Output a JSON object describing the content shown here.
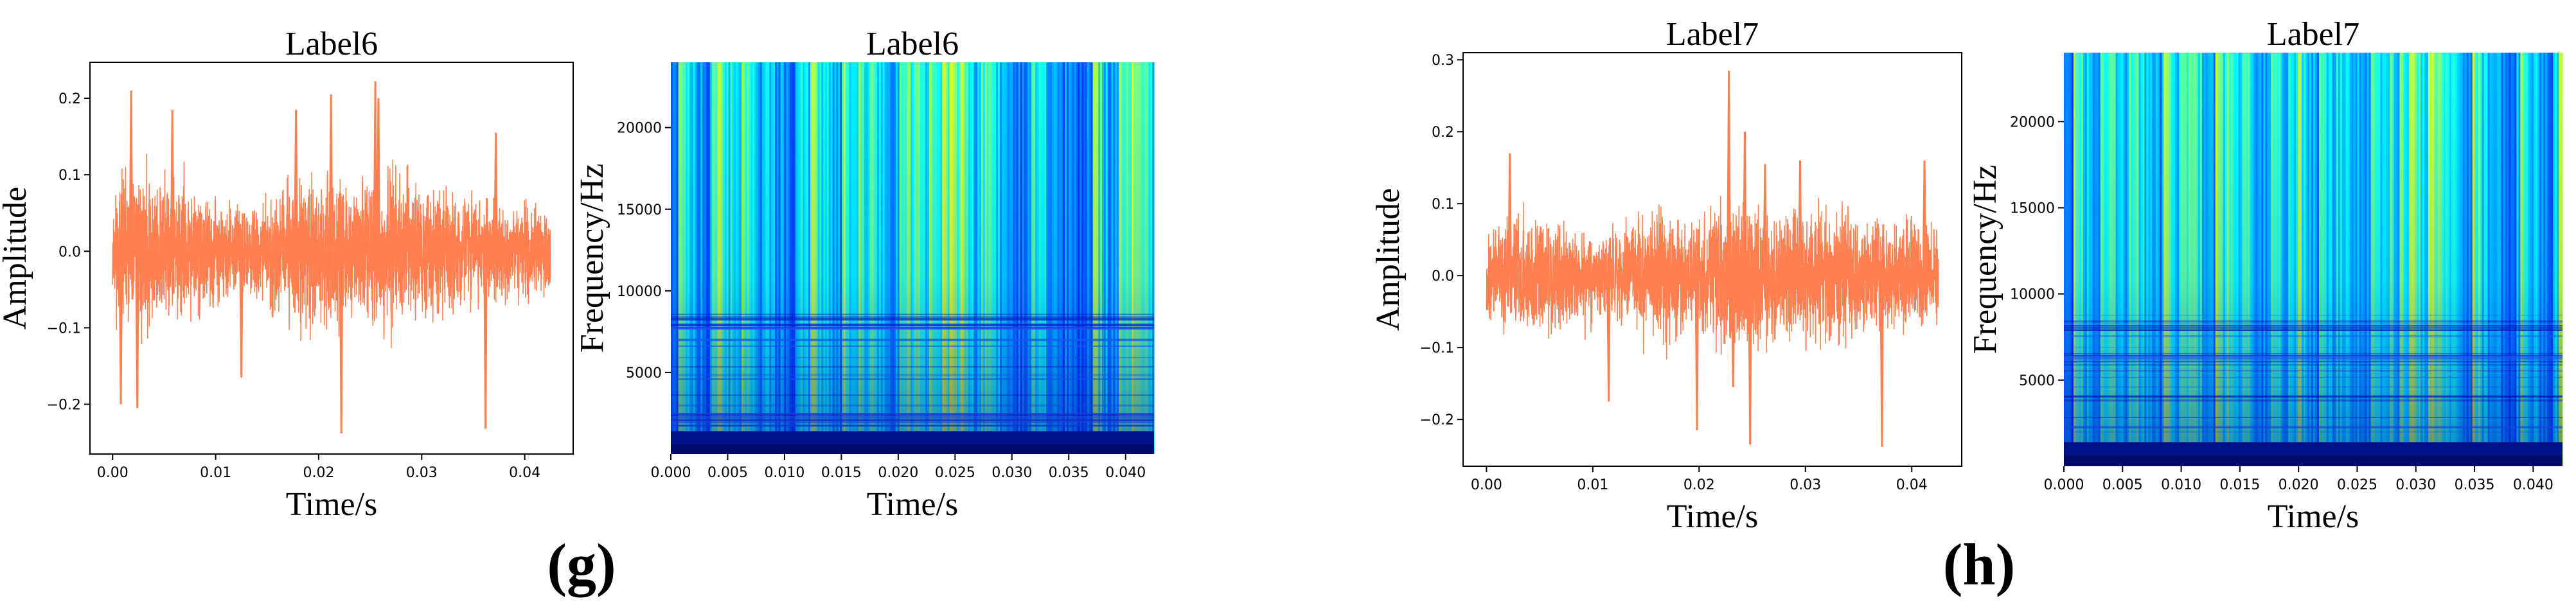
{
  "panels": [
    {
      "letter": "(g)"
    },
    {
      "letter": "(h)"
    }
  ],
  "chart_data": [
    {
      "type": "line",
      "title": "Label6",
      "xlabel": "Time/s",
      "ylabel": "Amplitude",
      "xlim": [
        -0.0022,
        0.0447
      ],
      "ylim": [
        -0.265,
        0.247
      ],
      "xticks": [
        0.0,
        0.01,
        0.02,
        0.03,
        0.04
      ],
      "xtick_labels": [
        "0.00",
        "0.01",
        "0.02",
        "0.03",
        "0.04"
      ],
      "yticks": [
        -0.2,
        -0.1,
        0.0,
        0.1,
        0.2
      ],
      "ytick_labels": [
        "−0.2",
        "−0.1",
        "0.0",
        "0.1",
        "0.2"
      ],
      "color": "#FF7F50",
      "series": [
        {
          "x": [
            0.0,
            0.002,
            0.004,
            0.006,
            0.008,
            0.01,
            0.012,
            0.014,
            0.016,
            0.018,
            0.02,
            0.022,
            0.024,
            0.026,
            0.028,
            0.03,
            0.032,
            0.034,
            0.036,
            0.038,
            0.04,
            0.0425
          ],
          "envelope": [
            0.09,
            0.13,
            0.11,
            0.1,
            0.09,
            0.07,
            0.06,
            0.07,
            0.09,
            0.11,
            0.12,
            0.11,
            0.1,
            0.11,
            0.12,
            0.1,
            0.09,
            0.08,
            0.07,
            0.07,
            0.07,
            0.06
          ],
          "spikes": [
            [
              0.0008,
              -0.2
            ],
            [
              0.0018,
              0.21
            ],
            [
              0.0024,
              -0.205
            ],
            [
              0.0058,
              0.185
            ],
            [
              0.0125,
              -0.165
            ],
            [
              0.0178,
              0.185
            ],
            [
              0.0212,
              0.205
            ],
            [
              0.0222,
              -0.238
            ],
            [
              0.0255,
              0.222
            ],
            [
              0.0258,
              0.2
            ],
            [
              0.0362,
              -0.232
            ],
            [
              0.0372,
              0.155
            ]
          ]
        }
      ]
    },
    {
      "type": "heatmap",
      "title": "Label6",
      "xlabel": "Time/s",
      "ylabel": "Frequency/Hz",
      "xlim": [
        0.0,
        0.0425
      ],
      "ylim": [
        0,
        24000
      ],
      "xticks": [
        0.0,
        0.005,
        0.01,
        0.015,
        0.02,
        0.025,
        0.03,
        0.035,
        0.04
      ],
      "xtick_labels": [
        "0.000",
        "0.005",
        "0.010",
        "0.015",
        "0.020",
        "0.025",
        "0.030",
        "0.035",
        "0.040"
      ],
      "yticks": [
        5000,
        10000,
        15000,
        20000
      ],
      "ytick_labels": [
        "5000",
        "10000",
        "15000",
        "20000"
      ],
      "colormap": "jet"
    },
    {
      "type": "line",
      "title": "Label7",
      "xlabel": "Time/s",
      "ylabel": "Amplitude",
      "xlim": [
        -0.0022,
        0.0447
      ],
      "ylim": [
        -0.265,
        0.31
      ],
      "xticks": [
        0.0,
        0.01,
        0.02,
        0.03,
        0.04
      ],
      "xtick_labels": [
        "0.00",
        "0.01",
        "0.02",
        "0.03",
        "0.04"
      ],
      "yticks": [
        -0.2,
        -0.1,
        0.0,
        0.1,
        0.2,
        0.3
      ],
      "ytick_labels": [
        "−0.2",
        "−0.1",
        "0.0",
        "0.1",
        "0.2",
        "0.3"
      ],
      "color": "#FF7F50",
      "series": [
        {
          "x": [
            0.0,
            0.002,
            0.004,
            0.006,
            0.008,
            0.01,
            0.012,
            0.014,
            0.016,
            0.018,
            0.02,
            0.022,
            0.024,
            0.026,
            0.028,
            0.03,
            0.032,
            0.034,
            0.036,
            0.038,
            0.04,
            0.0425
          ],
          "envelope": [
            0.07,
            0.09,
            0.1,
            0.09,
            0.08,
            0.06,
            0.07,
            0.09,
            0.11,
            0.1,
            0.09,
            0.12,
            0.13,
            0.1,
            0.09,
            0.1,
            0.11,
            0.1,
            0.09,
            0.08,
            0.09,
            0.08
          ],
          "spikes": [
            [
              0.0022,
              0.17
            ],
            [
              0.0115,
              -0.175
            ],
            [
              0.0198,
              -0.215
            ],
            [
              0.0228,
              0.285
            ],
            [
              0.0232,
              -0.155
            ],
            [
              0.0243,
              0.2
            ],
            [
              0.0248,
              -0.235
            ],
            [
              0.0262,
              0.155
            ],
            [
              0.0295,
              0.16
            ],
            [
              0.0372,
              -0.238
            ],
            [
              0.0412,
              0.16
            ]
          ]
        }
      ]
    },
    {
      "type": "heatmap",
      "title": "Label7",
      "xlabel": "Time/s",
      "ylabel": "Frequency/Hz",
      "xlim": [
        0.0,
        0.0425
      ],
      "ylim": [
        0,
        24000
      ],
      "xticks": [
        0.0,
        0.005,
        0.01,
        0.015,
        0.02,
        0.025,
        0.03,
        0.035,
        0.04
      ],
      "xtick_labels": [
        "0.000",
        "0.005",
        "0.010",
        "0.015",
        "0.020",
        "0.025",
        "0.030",
        "0.035",
        "0.040"
      ],
      "yticks": [
        5000,
        10000,
        15000,
        20000
      ],
      "ytick_labels": [
        "5000",
        "10000",
        "15000",
        "20000"
      ],
      "colormap": "jet"
    }
  ]
}
